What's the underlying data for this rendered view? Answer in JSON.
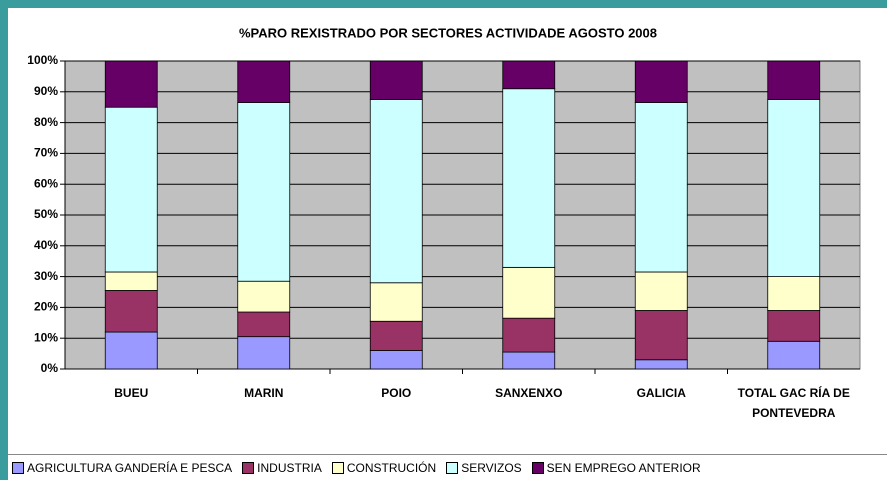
{
  "chart_data": {
    "type": "bar",
    "stacked": true,
    "title": "%PARO REXISTRADO POR SECTORES ACTIVIDADE AGOSTO 2008",
    "categories": [
      "BUEU",
      "MARIN",
      "POIO",
      "SANXENXO",
      "GALICIA",
      "TOTAL GAC RÍA DE PONTEVEDRA"
    ],
    "series": [
      {
        "name": "AGRICULTURA GANDERÍA E PESCA",
        "color": "#9999ff",
        "values": [
          12,
          10.5,
          6,
          5.5,
          3,
          9
        ]
      },
      {
        "name": "INDUSTRIA",
        "color": "#993366",
        "values": [
          13.5,
          8,
          9.5,
          11,
          16,
          10
        ]
      },
      {
        "name": "CONSTRUCIÓN",
        "color": "#ffffcc",
        "values": [
          6,
          10,
          12.5,
          16.5,
          12.5,
          11
        ]
      },
      {
        "name": "SERVIZOS",
        "color": "#ccffff",
        "values": [
          53.5,
          58,
          59.5,
          58,
          55,
          57.5
        ]
      },
      {
        "name": "SEN EMPREGO ANTERIOR",
        "color": "#660066",
        "values": [
          15,
          13.5,
          12.5,
          9,
          13.5,
          12.5
        ]
      }
    ],
    "ylim": [
      0,
      100
    ],
    "yticks": [
      {
        "value": 0,
        "label": "0%"
      },
      {
        "value": 10,
        "label": "10%"
      },
      {
        "value": 20,
        "label": "20%"
      },
      {
        "value": 30,
        "label": "30%"
      },
      {
        "value": 40,
        "label": "40%"
      },
      {
        "value": 50,
        "label": "50%"
      },
      {
        "value": 60,
        "label": "60%"
      },
      {
        "value": 70,
        "label": "70%"
      },
      {
        "value": 80,
        "label": "80%"
      },
      {
        "value": 90,
        "label": "90%"
      },
      {
        "value": 100,
        "label": "100%"
      }
    ],
    "grid": true,
    "legend": "bottom"
  }
}
